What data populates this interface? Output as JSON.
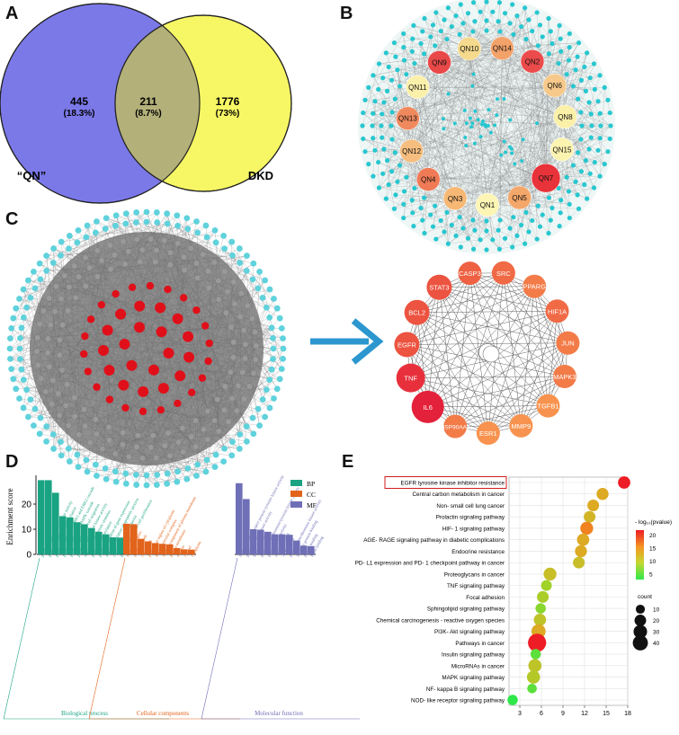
{
  "panels": {
    "a": "A",
    "b": "B",
    "c": "C",
    "d": "D",
    "e": "E"
  },
  "venn": {
    "left_label": "“QN”",
    "right_label": "DKD",
    "left_only": {
      "count": "445",
      "pct": "(18.3%)"
    },
    "overlap": {
      "count": "211",
      "pct": "(8.7%)"
    },
    "right_only": {
      "count": "1776",
      "pct": "(73%)"
    },
    "colors": {
      "left": "#7b79e8",
      "right": "#f7f765",
      "overlap": "#b3b07a"
    }
  },
  "network_b": {
    "nodes": [
      {
        "label": "QN10",
        "color": "#f5d98c"
      },
      {
        "label": "QN14",
        "color": "#f3a26a"
      },
      {
        "label": "QN2",
        "color": "#ec4b4b"
      },
      {
        "label": "QN6",
        "color": "#f7c98a"
      },
      {
        "label": "QN8",
        "color": "#fbf0a8"
      },
      {
        "label": "QN15",
        "color": "#fbf3b0"
      },
      {
        "label": "QN7",
        "color": "#e8333a"
      },
      {
        "label": "QN5",
        "color": "#f4a76a"
      },
      {
        "label": "QN1",
        "color": "#fcf5b4"
      },
      {
        "label": "QN3",
        "color": "#f6b874"
      },
      {
        "label": "QN4",
        "color": "#f07a55"
      },
      {
        "label": "QN12",
        "color": "#f5be7f"
      },
      {
        "label": "QN13",
        "color": "#f08a5e"
      },
      {
        "label": "QN11",
        "color": "#fbf0aa"
      },
      {
        "label": "QN9",
        "color": "#e94848"
      }
    ]
  },
  "hub_network": {
    "nodes": [
      {
        "label": "SRC",
        "color": "#f06a45"
      },
      {
        "label": "PPARG",
        "color": "#f37b48"
      },
      {
        "label": "HIF1A",
        "color": "#f06a45"
      },
      {
        "label": "JUN",
        "color": "#f37b48"
      },
      {
        "label": "MAPK3",
        "color": "#f37b48"
      },
      {
        "label": "TGFB1",
        "color": "#f7934f"
      },
      {
        "label": "MMP9",
        "color": "#f7934f"
      },
      {
        "label": "ESR1",
        "color": "#f7934f"
      },
      {
        "label": "HSP90AA1",
        "color": "#f37b48"
      },
      {
        "label": "IL6",
        "color": "#e4213a"
      },
      {
        "label": "TNF",
        "color": "#e8303d"
      },
      {
        "label": "EGFR",
        "color": "#ec5340"
      },
      {
        "label": "BCL2",
        "color": "#ec5340"
      },
      {
        "label": "STAT3",
        "color": "#ec5340"
      },
      {
        "label": "CASP3",
        "color": "#ee6142"
      }
    ]
  },
  "chart_data": [
    {
      "type": "bar",
      "ylabel": "Enrichment score",
      "ylim": [
        0,
        30
      ],
      "yticks": [
        "0",
        "10",
        "20"
      ],
      "legend": [
        {
          "name": "BP",
          "color": "#1aa383"
        },
        {
          "name": "CC",
          "color": "#e2631b"
        },
        {
          "name": "MF",
          "color": "#6f6fb7"
        }
      ],
      "groups": [
        {
          "name": "Biological process",
          "color": "#1aa383",
          "values": [
            29.5,
            29.5,
            24.5,
            15.2,
            14.7,
            12.8,
            12.0,
            10.5,
            9.0,
            8.0,
            6.8,
            6.7
          ],
          "labels": [
            "positive regulation of GTPase activity",
            "peptidyl-tyrosine phosphorylation",
            "positive regulation of ERK1 and ERK2 cascade",
            "positive regulation of MAPK cascade",
            "positive regulation of cell migration",
            "positive regulation of kinase activity",
            "response to xenobiotic stimulus",
            "protein phosphorylation",
            "positive regulation of gene expression",
            "negative regulation of apoptotic process",
            "cellular response to hypoxia",
            "positive regulation of cell proliferation"
          ]
        },
        {
          "name": "Cellular components",
          "color": "#e2631b",
          "values": [
            12.2,
            12.0,
            6.2,
            5.2,
            4.5,
            4.2,
            4.0,
            2.5,
            2.0,
            1.9
          ],
          "labels": [
            "receptor complex",
            "membrane raft",
            "cell surface",
            "perinuclear region of cytoplasm",
            "macromolecular complex",
            "integral component of plasma membrane",
            "plasma membrane",
            "nucleus",
            "cytosol",
            "cytoplasm"
          ]
        },
        {
          "name": "Molecular function",
          "color": "#6f6fb7",
          "values": [
            28.3,
            22.0,
            10.0,
            9.8,
            9.0,
            8.0,
            8.0,
            7.8,
            5.5,
            3.5,
            3.3
          ],
          "labels": [
            "transmembrane receptor protein tyrosine kinase activity",
            "protein tyrosine kinase activity",
            "kinase activity",
            "protein serine/threonine/tyrosine kinase activity",
            "protein kinase activity",
            "enzyme binding",
            "ATP binding",
            "protein serine/threonine kinase activity",
            "identical protein binding",
            "protein binding",
            "heme binding"
          ]
        }
      ]
    },
    {
      "type": "scatter",
      "xlabel": "",
      "xlim": [
        1.5,
        18
      ],
      "xticks": [
        "3",
        "6",
        "9",
        "12",
        "15",
        "18"
      ],
      "color_legend_title": "- log₁₀(pvalue)",
      "color_ticks": [
        "20",
        "15",
        "10",
        "5"
      ],
      "size_legend_title": "count",
      "size_ticks": [
        "10",
        "20",
        "30",
        "40"
      ],
      "highlight": "EGFR tyrosine kinase inhibitor resistance",
      "points": [
        {
          "pathway": "EGFR tyrosine kinase inhibitor resistance",
          "x": 17.5,
          "count": 15,
          "neglogp": 22
        },
        {
          "pathway": "Central carbon metabolism in cancer",
          "x": 14.5,
          "count": 14,
          "neglogp": 14
        },
        {
          "pathway": "Non- small cell lung cancer",
          "x": 13.2,
          "count": 13,
          "neglogp": 14
        },
        {
          "pathway": "Prolactin signaling pathway",
          "x": 12.7,
          "count": 13,
          "neglogp": 13
        },
        {
          "pathway": "HIF- 1 signaling pathway",
          "x": 12.3,
          "count": 17,
          "neglogp": 17
        },
        {
          "pathway": "AGE- RAGE signaling pathway in diabetic complications",
          "x": 11.8,
          "count": 15,
          "neglogp": 14
        },
        {
          "pathway": "Endocrine resistance",
          "x": 11.5,
          "count": 14,
          "neglogp": 14
        },
        {
          "pathway": "PD- L1 expression and PD- 1 checkpoint pathway in cancer",
          "x": 11.2,
          "count": 13,
          "neglogp": 12
        },
        {
          "pathway": "Proteoglycans in cancer",
          "x": 7.2,
          "count": 17,
          "neglogp": 12
        },
        {
          "pathway": "TNF signaling pathway",
          "x": 6.7,
          "count": 10,
          "neglogp": 8
        },
        {
          "pathway": "Focal adhesion",
          "x": 6.2,
          "count": 13,
          "neglogp": 9
        },
        {
          "pathway": "Sphingolipid signaling pathway",
          "x": 5.9,
          "count": 9,
          "neglogp": 7
        },
        {
          "pathway": "Chemical carcinogenesis - reactive oxygen species",
          "x": 5.8,
          "count": 15,
          "neglogp": 11
        },
        {
          "pathway": "PI3K- Akt signaling pathway",
          "x": 5.6,
          "count": 22,
          "neglogp": 14
        },
        {
          "pathway": "Pathways in cancer",
          "x": 5.4,
          "count": 42,
          "neglogp": 22
        },
        {
          "pathway": "Insulin signaling pathway",
          "x": 5.2,
          "count": 9,
          "neglogp": 5
        },
        {
          "pathway": "MicroRNAs in cancer",
          "x": 5.1,
          "count": 18,
          "neglogp": 11
        },
        {
          "pathway": "MAPK signaling pathway",
          "x": 4.9,
          "count": 18,
          "neglogp": 10
        },
        {
          "pathway": "NF- kappa B signaling pathway",
          "x": 4.7,
          "count": 7,
          "neglogp": 5
        },
        {
          "pathway": "NOD- like receptor signaling pathway",
          "x": 2.0,
          "count": 9,
          "neglogp": 3
        }
      ]
    }
  ]
}
